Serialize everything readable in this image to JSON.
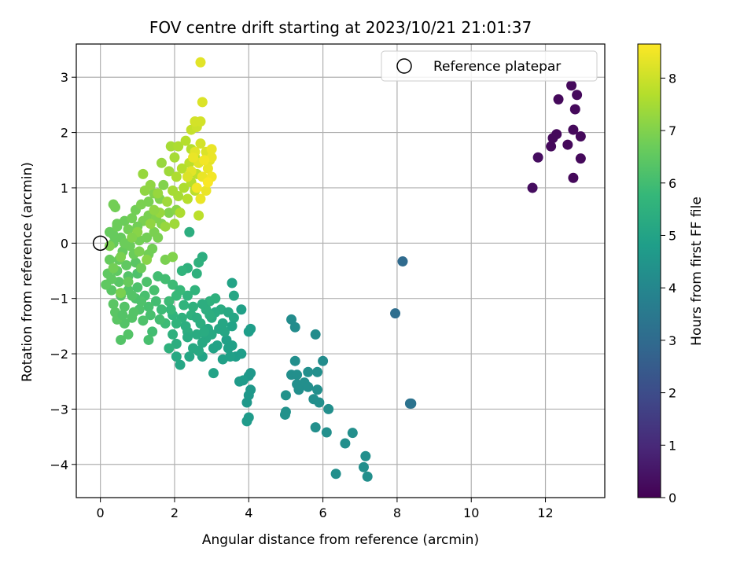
{
  "chart_data": {
    "type": "scatter",
    "title": "FOV centre drift starting at 2023/10/21 21:01:37",
    "xlabel": "Angular distance from reference (arcmin)",
    "ylabel": "Rotation from reference (arcmin)",
    "xlim": [
      -0.65,
      13.6
    ],
    "ylim": [
      -4.6,
      3.6
    ],
    "xticks": [
      0,
      2,
      4,
      6,
      8,
      10,
      12
    ],
    "yticks": [
      -4,
      -3,
      -2,
      -1,
      0,
      1,
      2,
      3
    ],
    "grid": true,
    "legend": {
      "position": "top-right",
      "entries": [
        "Reference platepar"
      ]
    },
    "reference_point": {
      "x": 0,
      "y": 0
    },
    "colorbar": {
      "label": "Hours from first FF file",
      "colormap": "viridis",
      "range": [
        0,
        8.65
      ],
      "ticks": [
        0,
        1,
        2,
        3,
        4,
        5,
        6,
        7,
        8
      ]
    },
    "points": [
      [
        12.7,
        2.85,
        0.2
      ],
      [
        12.35,
        2.6,
        0.2
      ],
      [
        12.85,
        2.68,
        0.2
      ],
      [
        12.8,
        2.42,
        0.2
      ],
      [
        12.3,
        1.97,
        0.2
      ],
      [
        12.2,
        1.9,
        0.2
      ],
      [
        12.6,
        1.78,
        0.2
      ],
      [
        12.75,
        2.05,
        0.2
      ],
      [
        12.95,
        1.93,
        0.2
      ],
      [
        12.15,
        1.75,
        0.2
      ],
      [
        11.8,
        1.55,
        0.3
      ],
      [
        12.95,
        1.53,
        0.2
      ],
      [
        12.75,
        1.18,
        0.2
      ],
      [
        11.65,
        1.0,
        0.3
      ],
      [
        8.15,
        -0.33,
        3.0
      ],
      [
        7.95,
        -1.27,
        3.1
      ],
      [
        8.35,
        -2.9,
        3.2
      ],
      [
        8.38,
        -2.9,
        3.3
      ],
      [
        5.15,
        -1.38,
        4.2
      ],
      [
        5.25,
        -1.52,
        4.2
      ],
      [
        5.8,
        -1.65,
        4.2
      ],
      [
        6.0,
        -2.13,
        4.2
      ],
      [
        5.25,
        -2.13,
        4.3
      ],
      [
        5.15,
        -2.38,
        4.3
      ],
      [
        5.3,
        -2.38,
        4.3
      ],
      [
        5.6,
        -2.33,
        4.3
      ],
      [
        5.85,
        -2.33,
        4.3
      ],
      [
        5.5,
        -2.52,
        4.3
      ],
      [
        5.3,
        -2.55,
        4.3
      ],
      [
        5.35,
        -2.65,
        4.3
      ],
      [
        5.6,
        -2.6,
        4.3
      ],
      [
        5.85,
        -2.65,
        4.3
      ],
      [
        5.0,
        -2.75,
        4.4
      ],
      [
        5.75,
        -2.82,
        4.3
      ],
      [
        5.9,
        -2.88,
        4.3
      ],
      [
        6.15,
        -3.0,
        4.3
      ],
      [
        5.0,
        -3.05,
        4.4
      ],
      [
        4.98,
        -3.1,
        4.4
      ],
      [
        5.8,
        -3.33,
        4.3
      ],
      [
        6.1,
        -3.42,
        4.3
      ],
      [
        6.8,
        -3.43,
        4.3
      ],
      [
        6.6,
        -3.62,
        4.3
      ],
      [
        7.15,
        -3.85,
        4.3
      ],
      [
        7.1,
        -4.05,
        4.3
      ],
      [
        6.35,
        -4.17,
        4.3
      ],
      [
        7.2,
        -4.22,
        4.3
      ],
      [
        4.05,
        -2.35,
        4.6
      ],
      [
        4.0,
        -2.4,
        4.6
      ],
      [
        4.05,
        -2.65,
        4.6
      ],
      [
        4.0,
        -2.75,
        4.6
      ],
      [
        3.95,
        -2.88,
        4.6
      ],
      [
        4.0,
        -3.15,
        4.7
      ],
      [
        3.95,
        -3.22,
        4.7
      ],
      [
        3.75,
        -2.5,
        4.7
      ],
      [
        3.85,
        -2.48,
        4.7
      ],
      [
        3.65,
        -2.05,
        4.8
      ],
      [
        3.8,
        -2.0,
        4.8
      ],
      [
        3.5,
        -2.05,
        4.9
      ],
      [
        3.3,
        -2.1,
        4.9
      ],
      [
        3.55,
        -1.85,
        4.9
      ],
      [
        3.4,
        -1.75,
        4.9
      ],
      [
        3.15,
        -1.85,
        5.0
      ],
      [
        3.05,
        -2.35,
        5.0
      ],
      [
        2.75,
        -2.05,
        5.0
      ],
      [
        2.4,
        -2.05,
        5.1
      ],
      [
        2.15,
        -2.2,
        5.1
      ],
      [
        2.05,
        -2.05,
        5.2
      ],
      [
        4.0,
        -1.6,
        4.8
      ],
      [
        4.05,
        -1.55,
        4.8
      ],
      [
        3.55,
        -0.72,
        5.0
      ],
      [
        3.6,
        -0.95,
        5.1
      ],
      [
        3.8,
        -1.2,
        4.9
      ],
      [
        2.75,
        -0.25,
        5.4
      ],
      [
        2.4,
        0.2,
        5.4
      ],
      [
        2.65,
        -0.35,
        5.5
      ],
      [
        2.6,
        -0.55,
        5.5
      ],
      [
        2.35,
        -0.45,
        5.5
      ],
      [
        2.2,
        -0.5,
        5.6
      ],
      [
        2.55,
        -0.85,
        5.6
      ],
      [
        2.35,
        -0.95,
        5.6
      ],
      [
        2.95,
        -1.05,
        5.5
      ],
      [
        3.1,
        -1.0,
        5.5
      ],
      [
        2.85,
        -1.2,
        5.4
      ],
      [
        3.25,
        -1.2,
        5.3
      ],
      [
        3.45,
        -1.25,
        5.2
      ],
      [
        3.6,
        -1.35,
        5.1
      ],
      [
        3.0,
        -1.35,
        5.3
      ],
      [
        2.7,
        -1.45,
        5.4
      ],
      [
        2.45,
        -1.3,
        5.5
      ],
      [
        2.2,
        -1.35,
        5.5
      ],
      [
        1.95,
        -1.3,
        5.6
      ],
      [
        2.35,
        -1.6,
        5.4
      ],
      [
        2.6,
        -1.65,
        5.3
      ],
      [
        2.85,
        -1.72,
        5.2
      ],
      [
        3.2,
        -1.55,
        5.1
      ],
      [
        3.35,
        -1.6,
        5.1
      ],
      [
        3.05,
        -1.9,
        5.0
      ],
      [
        2.5,
        -1.9,
        5.2
      ],
      [
        2.75,
        -1.8,
        5.2
      ],
      [
        2.35,
        -1.7,
        5.3
      ],
      [
        2.05,
        -1.82,
        5.4
      ],
      [
        1.95,
        -1.65,
        5.5
      ],
      [
        1.85,
        -1.9,
        5.5
      ],
      [
        2.05,
        -1.45,
        5.6
      ],
      [
        2.25,
        -1.12,
        5.6
      ],
      [
        2.5,
        -1.15,
        5.5
      ],
      [
        2.75,
        -1.1,
        5.4
      ],
      [
        3.0,
        -1.65,
        5.2
      ],
      [
        3.3,
        -1.45,
        5.1
      ],
      [
        3.55,
        -1.5,
        5.0
      ],
      [
        3.1,
        -1.25,
        5.3
      ],
      [
        2.9,
        -1.55,
        5.2
      ],
      [
        2.6,
        -1.35,
        5.4
      ],
      [
        2.3,
        -1.5,
        5.4
      ],
      [
        3.45,
        -1.9,
        4.9
      ],
      [
        2.8,
        -1.6,
        5.3
      ],
      [
        2.65,
        -1.95,
        5.2
      ],
      [
        2.95,
        -1.3,
        5.4
      ],
      [
        1.55,
        -0.6,
        6.0
      ],
      [
        1.75,
        -0.65,
        6.0
      ],
      [
        1.95,
        -0.75,
        5.9
      ],
      [
        2.15,
        -0.85,
        5.8
      ],
      [
        1.85,
        -1.05,
        5.9
      ],
      [
        1.65,
        -1.2,
        5.9
      ],
      [
        1.5,
        -1.05,
        6.0
      ],
      [
        1.3,
        -1.15,
        6.1
      ],
      [
        1.05,
        -1.2,
        6.2
      ],
      [
        0.85,
        -1.35,
        6.3
      ],
      [
        0.65,
        -1.45,
        6.3
      ],
      [
        0.45,
        -1.38,
        6.4
      ],
      [
        0.35,
        -1.1,
        6.4
      ],
      [
        0.55,
        -0.95,
        6.4
      ],
      [
        0.75,
        -0.85,
        6.3
      ],
      [
        1.0,
        -0.8,
        6.2
      ],
      [
        1.2,
        -0.95,
        6.1
      ],
      [
        1.45,
        -0.85,
        6.1
      ],
      [
        1.75,
        -1.45,
        5.9
      ],
      [
        1.6,
        -1.38,
        6.0
      ],
      [
        1.35,
        -1.3,
        6.1
      ],
      [
        1.15,
        -1.4,
        6.2
      ],
      [
        0.9,
        -1.25,
        6.3
      ],
      [
        0.65,
        -1.15,
        6.3
      ],
      [
        0.4,
        -1.25,
        6.4
      ],
      [
        0.3,
        -0.85,
        6.4
      ],
      [
        0.5,
        -0.7,
        6.4
      ],
      [
        0.75,
        -0.6,
        6.3
      ],
      [
        1.0,
        -0.55,
        6.2
      ],
      [
        1.25,
        -0.7,
        6.2
      ],
      [
        1.4,
        -1.6,
        6.0
      ],
      [
        0.55,
        -1.75,
        6.3
      ],
      [
        0.75,
        -1.65,
        6.3
      ],
      [
        1.3,
        -1.75,
        6.1
      ],
      [
        1.9,
        -1.2,
        5.8
      ],
      [
        2.05,
        -0.95,
        5.8
      ],
      [
        0.95,
        -1.0,
        6.2
      ],
      [
        0.6,
        -1.3,
        6.3
      ],
      [
        1.1,
        -1.05,
        6.2
      ],
      [
        0.85,
        -0.95,
        6.3
      ],
      [
        0.3,
        -0.65,
        6.5
      ],
      [
        0.45,
        -0.5,
        6.5
      ],
      [
        0.7,
        -0.4,
        6.5
      ],
      [
        0.95,
        -0.35,
        6.4
      ],
      [
        0.35,
        0.0,
        6.6
      ],
      [
        0.55,
        0.1,
        6.6
      ],
      [
        0.25,
        0.2,
        6.6
      ],
      [
        0.35,
        0.15,
        6.6
      ],
      [
        0.45,
        0.35,
        6.7
      ],
      [
        0.65,
        0.4,
        6.7
      ],
      [
        0.45,
        0.3,
        6.7
      ],
      [
        0.35,
        0.7,
        6.8
      ],
      [
        0.4,
        0.65,
        6.8
      ],
      [
        0.85,
        0.45,
        6.8
      ],
      [
        0.95,
        0.6,
        6.8
      ],
      [
        1.1,
        0.7,
        6.9
      ],
      [
        1.3,
        0.75,
        6.9
      ],
      [
        1.45,
        0.9,
        7.0
      ],
      [
        1.7,
        1.05,
        7.0
      ],
      [
        1.6,
        0.8,
        7.0
      ],
      [
        0.25,
        -0.3,
        6.6
      ],
      [
        0.2,
        -0.55,
        6.5
      ],
      [
        0.15,
        -0.75,
        6.5
      ],
      [
        0.5,
        -0.3,
        6.6
      ],
      [
        0.6,
        -0.15,
        6.6
      ],
      [
        0.8,
        -0.05,
        6.7
      ],
      [
        1.05,
        0.05,
        6.8
      ],
      [
        1.25,
        0.1,
        6.8
      ],
      [
        1.45,
        0.2,
        6.9
      ],
      [
        1.65,
        0.35,
        7.0
      ],
      [
        1.85,
        0.55,
        7.0
      ],
      [
        2.05,
        0.6,
        7.1
      ],
      [
        1.15,
        0.4,
        6.9
      ],
      [
        0.75,
        0.25,
        6.8
      ],
      [
        1.0,
        0.3,
        6.8
      ],
      [
        1.3,
        0.5,
        6.9
      ],
      [
        0.9,
        -0.2,
        6.7
      ],
      [
        0.65,
        0.0,
        6.7
      ],
      [
        1.5,
        0.45,
        7.0
      ],
      [
        1.55,
        0.1,
        6.9
      ],
      [
        1.75,
        -0.3,
        6.9
      ],
      [
        1.95,
        -0.25,
        7.0
      ],
      [
        1.3,
        -0.2,
        6.8
      ],
      [
        0.75,
        -0.7,
        6.6
      ],
      [
        1.1,
        -0.45,
        6.7
      ],
      [
        1.4,
        -0.1,
        6.8
      ],
      [
        0.55,
        -0.9,
        6.9
      ],
      [
        1.05,
        -0.15,
        6.9
      ],
      [
        1.15,
        1.25,
        7.3
      ],
      [
        1.65,
        1.45,
        7.3
      ],
      [
        1.35,
        1.05,
        7.2
      ],
      [
        1.2,
        0.95,
        7.2
      ],
      [
        1.85,
        1.3,
        7.4
      ],
      [
        2.0,
        1.55,
        7.5
      ],
      [
        1.9,
        1.75,
        7.5
      ],
      [
        2.1,
        1.75,
        7.6
      ],
      [
        2.3,
        1.85,
        7.7
      ],
      [
        2.45,
        1.7,
        7.7
      ],
      [
        2.55,
        1.55,
        7.8
      ],
      [
        2.4,
        1.45,
        7.8
      ],
      [
        2.2,
        1.35,
        7.7
      ],
      [
        2.05,
        1.2,
        7.6
      ],
      [
        1.95,
        0.95,
        7.5
      ],
      [
        2.1,
        0.85,
        7.5
      ],
      [
        2.25,
        1.0,
        7.6
      ],
      [
        2.45,
        1.1,
        7.7
      ],
      [
        2.6,
        1.25,
        7.8
      ],
      [
        2.55,
        0.95,
        7.8
      ],
      [
        2.35,
        0.8,
        7.7
      ],
      [
        2.65,
        0.5,
        7.8
      ],
      [
        2.15,
        0.55,
        7.6
      ],
      [
        1.8,
        0.75,
        7.4
      ],
      [
        1.6,
        0.55,
        7.3
      ],
      [
        1.45,
        0.6,
        7.2
      ],
      [
        1.35,
        0.35,
        7.2
      ],
      [
        1.0,
        0.2,
        7.1
      ],
      [
        0.85,
        0.1,
        7.0
      ],
      [
        0.55,
        -0.25,
        6.9
      ],
      [
        0.35,
        -0.45,
        6.8
      ],
      [
        0.25,
        -0.05,
        6.9
      ],
      [
        1.25,
        -0.3,
        7.1
      ],
      [
        1.75,
        0.3,
        7.3
      ],
      [
        2.0,
        0.35,
        7.4
      ],
      [
        1.55,
        0.9,
        7.3
      ],
      [
        2.45,
        2.05,
        7.9
      ],
      [
        2.6,
        2.1,
        8.0
      ],
      [
        2.55,
        2.2,
        8.1
      ],
      [
        2.7,
        2.2,
        8.1
      ],
      [
        2.75,
        2.55,
        8.2
      ],
      [
        2.7,
        3.27,
        8.3
      ],
      [
        2.7,
        1.8,
        8.1
      ],
      [
        2.85,
        1.65,
        8.2
      ],
      [
        2.95,
        1.5,
        8.3
      ],
      [
        3.0,
        1.7,
        8.4
      ],
      [
        3.0,
        1.55,
        8.4
      ],
      [
        2.9,
        1.35,
        8.4
      ],
      [
        2.75,
        1.2,
        8.4
      ],
      [
        2.65,
        1.45,
        8.3
      ],
      [
        2.55,
        1.65,
        8.3
      ],
      [
        2.45,
        1.3,
        8.3
      ],
      [
        2.85,
        0.95,
        8.4
      ],
      [
        2.7,
        0.8,
        8.4
      ],
      [
        3.0,
        1.2,
        8.5
      ],
      [
        2.8,
        1.5,
        8.5
      ],
      [
        2.6,
        1.0,
        8.5
      ],
      [
        2.9,
        1.1,
        8.6
      ],
      [
        2.5,
        1.55,
        8.4
      ],
      [
        2.35,
        1.2,
        8.2
      ]
    ]
  }
}
